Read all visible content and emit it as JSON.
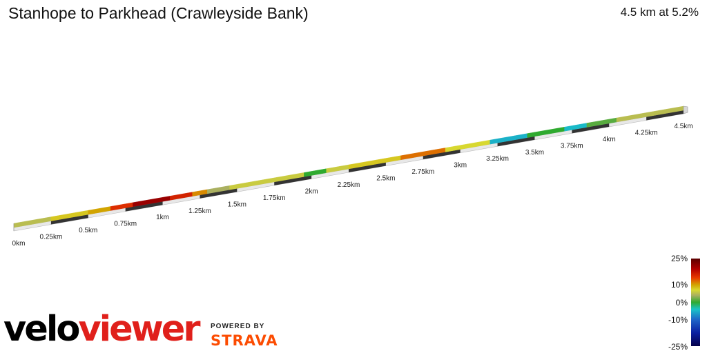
{
  "header": {
    "title": "Stanhope to Parkhead (Crawleyside Bank)",
    "stats": "4.5 km at 5.2%"
  },
  "legend": {
    "labels": [
      "25%",
      "10%",
      "0%",
      "-10%",
      "-25%"
    ],
    "values": [
      25,
      10,
      0,
      -10,
      -25
    ]
  },
  "branding": {
    "logo_part1": "velo",
    "logo_part2": "viewer",
    "powered_by": "POWERED BY",
    "strava": "STRAVA"
  },
  "chart_data": {
    "type": "line",
    "title": "Stanhope to Parkhead (Crawleyside Bank)",
    "xlabel": "",
    "ylabel": "",
    "x_unit": "km",
    "tick_labels": [
      "0km",
      "0.25km",
      "0.5km",
      "0.75km",
      "1km",
      "1.25km",
      "1.5km",
      "1.75km",
      "2km",
      "2.25km",
      "2.5km",
      "2.75km",
      "3km",
      "3.25km",
      "3.5km",
      "3.75km",
      "4km",
      "4.25km",
      "4.5km"
    ],
    "ticks_km": [
      0,
      0.25,
      0.5,
      0.75,
      1,
      1.25,
      1.5,
      1.75,
      2,
      2.25,
      2.5,
      2.75,
      3,
      3.25,
      3.5,
      3.75,
      4,
      4.25,
      4.5
    ],
    "distance_km": 4.5,
    "avg_gradient_pct": 5.2,
    "gradient_segments": [
      {
        "from_km": 0.0,
        "to_km": 0.25,
        "gradient_pct": 4
      },
      {
        "from_km": 0.25,
        "to_km": 0.5,
        "gradient_pct": 7
      },
      {
        "from_km": 0.5,
        "to_km": 0.65,
        "gradient_pct": 9
      },
      {
        "from_km": 0.65,
        "to_km": 0.8,
        "gradient_pct": 14
      },
      {
        "from_km": 0.8,
        "to_km": 1.05,
        "gradient_pct": 20
      },
      {
        "from_km": 1.05,
        "to_km": 1.2,
        "gradient_pct": 15
      },
      {
        "from_km": 1.2,
        "to_km": 1.3,
        "gradient_pct": 10
      },
      {
        "from_km": 1.3,
        "to_km": 1.45,
        "gradient_pct": 3
      },
      {
        "from_km": 1.45,
        "to_km": 1.95,
        "gradient_pct": 5
      },
      {
        "from_km": 1.95,
        "to_km": 2.1,
        "gradient_pct": 0
      },
      {
        "from_km": 2.1,
        "to_km": 2.25,
        "gradient_pct": 5
      },
      {
        "from_km": 2.25,
        "to_km": 2.6,
        "gradient_pct": 7
      },
      {
        "from_km": 2.6,
        "to_km": 2.9,
        "gradient_pct": 11
      },
      {
        "from_km": 2.9,
        "to_km": 3.2,
        "gradient_pct": 6
      },
      {
        "from_km": 3.2,
        "to_km": 3.45,
        "gradient_pct": -5
      },
      {
        "from_km": 3.45,
        "to_km": 3.7,
        "gradient_pct": 0
      },
      {
        "from_km": 3.7,
        "to_km": 3.85,
        "gradient_pct": -4
      },
      {
        "from_km": 3.85,
        "to_km": 4.05,
        "gradient_pct": 1
      },
      {
        "from_km": 4.05,
        "to_km": 4.5,
        "gradient_pct": 4
      }
    ]
  }
}
